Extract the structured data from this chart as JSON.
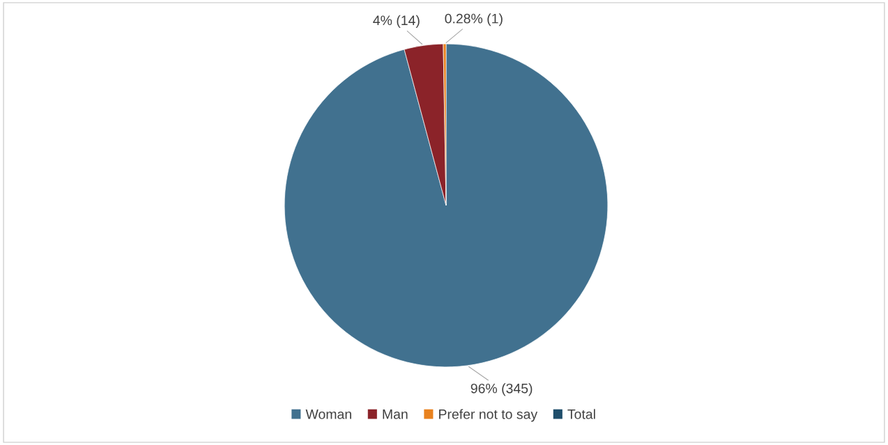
{
  "chart_data": {
    "type": "pie",
    "categories": [
      "Woman",
      "Man",
      "Prefer not to say",
      "Total"
    ],
    "values": [
      345,
      14,
      1,
      null
    ],
    "value_labels": [
      "96% (345)",
      "4% (14)",
      "0.28% (1)",
      null
    ],
    "colors": [
      "#41718f",
      "#8b2329",
      "#e9821e",
      "#1f4e6b"
    ],
    "legend": "bottom"
  }
}
